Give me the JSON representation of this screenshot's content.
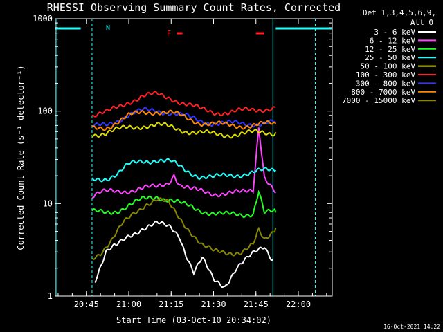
{
  "chart_data": {
    "type": "line",
    "title": "RHESSI Observing Summary Count Rates, Corrected",
    "xlabel": "Start Time (03-Oct-10 20:34:02)",
    "ylabel": "Corrected Count Rate (s⁻¹ detector⁻¹)",
    "yscale": "log",
    "ylim": [
      1,
      1000
    ],
    "xlim": [
      "20:34:02",
      "22:12:00"
    ],
    "x_ticks": [
      "20:45",
      "21:00",
      "21:15",
      "21:30",
      "21:45",
      "22:00"
    ],
    "y_ticks": [
      "1",
      "10",
      "100",
      "1000"
    ],
    "legend_position": "right",
    "legend_header": [
      "Det 1,3,4,5,6,9,",
      "Att 0"
    ],
    "footer_date": "16-Oct-2021 14:22",
    "annotations": {
      "night_marker": "N",
      "flare_marker": "F"
    },
    "series": [
      {
        "name": "3 - 6 keV",
        "color": "#ffffff",
        "x": [
          "20:48",
          "20:52",
          "20:56",
          "21:00",
          "21:05",
          "21:10",
          "21:15",
          "21:18",
          "21:20",
          "21:23",
          "21:26",
          "21:30",
          "21:34",
          "21:38",
          "21:42",
          "21:45",
          "21:48",
          "21:51"
        ],
        "values": [
          1.5,
          3,
          3.5,
          4.5,
          5.5,
          6,
          5.5,
          4.5,
          3,
          1.8,
          2.5,
          1.5,
          1.3,
          2,
          2.5,
          3,
          3.5,
          2.5
        ]
      },
      {
        "name": "6 - 12 keV",
        "color": "#ff44ff",
        "x": [
          "20:47",
          "20:50",
          "20:55",
          "21:00",
          "21:05",
          "21:10",
          "21:14",
          "21:16",
          "21:18",
          "21:22",
          "21:30",
          "21:40",
          "21:44",
          "21:46",
          "21:48",
          "21:52"
        ],
        "values": [
          12,
          13,
          13.5,
          14,
          14.5,
          15,
          17,
          21,
          16,
          14,
          13,
          13,
          14,
          70,
          20,
          13
        ]
      },
      {
        "name": "12 - 25 keV",
        "color": "#22ff22",
        "x": [
          "20:47",
          "20:52",
          "20:56",
          "21:00",
          "21:05",
          "21:10",
          "21:15",
          "21:20",
          "21:25",
          "21:30",
          "21:35",
          "21:40",
          "21:44",
          "21:46",
          "21:48",
          "21:52"
        ],
        "values": [
          8,
          8,
          8.5,
          9.5,
          11,
          12,
          11,
          9.5,
          8.5,
          8,
          7.5,
          7.5,
          8,
          14,
          8,
          8
        ]
      },
      {
        "name": "25 - 50 keV",
        "color": "#22ffff",
        "x": [
          "20:47",
          "20:52",
          "20:56",
          "21:00",
          "21:05",
          "21:10",
          "21:15",
          "21:20",
          "21:25",
          "21:30",
          "21:35",
          "21:40",
          "21:45",
          "21:52"
        ],
        "values": [
          18,
          19,
          21,
          26,
          29,
          30,
          28,
          23,
          20,
          19,
          20,
          21,
          22,
          23
        ]
      },
      {
        "name": "50 - 100 keV",
        "color": "#dddd00",
        "x": [
          "20:47",
          "20:52",
          "20:56",
          "21:00",
          "21:05",
          "21:10",
          "21:15",
          "21:20",
          "21:25",
          "21:30",
          "21:35",
          "21:40",
          "21:45",
          "21:52"
        ],
        "values": [
          57,
          58,
          62,
          67,
          70,
          70,
          67,
          62,
          58,
          56,
          56,
          57,
          58,
          59
        ]
      },
      {
        "name": "100 - 300 keV",
        "color": "#ff2222",
        "x": [
          "20:47",
          "20:52",
          "20:56",
          "21:00",
          "21:05",
          "21:10",
          "21:15",
          "21:20",
          "21:25",
          "21:30",
          "21:35",
          "21:40",
          "21:45",
          "21:52"
        ],
        "values": [
          90,
          95,
          110,
          128,
          145,
          150,
          140,
          120,
          105,
          98,
          97,
          100,
          104,
          110
        ]
      },
      {
        "name": "300 - 800 keV",
        "color": "#3333ff",
        "x": [
          "20:47",
          "20:52",
          "20:56",
          "21:00",
          "21:05",
          "21:10",
          "21:15",
          "21:20",
          "21:25",
          "21:30",
          "21:35",
          "21:40",
          "21:45",
          "21:52"
        ],
        "values": [
          67,
          70,
          80,
          92,
          100,
          102,
          97,
          87,
          79,
          75,
          73,
          73,
          74,
          75
        ]
      },
      {
        "name": "800 - 7000 keV",
        "color": "#ff8800",
        "x": [
          "20:47",
          "20:52",
          "20:56",
          "21:00",
          "21:05",
          "21:10",
          "21:15",
          "21:20",
          "21:25",
          "21:30",
          "21:35",
          "21:40",
          "21:45",
          "21:52"
        ],
        "values": [
          64,
          67,
          77,
          88,
          97,
          100,
          95,
          85,
          76,
          72,
          70,
          70,
          71,
          72
        ]
      },
      {
        "name": "7000 - 15000 keV",
        "color": "#888800",
        "x": [
          "20:47",
          "20:50",
          "20:54",
          "20:58",
          "21:02",
          "21:06",
          "21:10",
          "21:14",
          "21:18",
          "21:22",
          "21:26",
          "21:30",
          "21:35",
          "21:40",
          "21:44",
          "21:46",
          "21:48",
          "21:52"
        ],
        "values": [
          2.6,
          3,
          4,
          6,
          8,
          10,
          11,
          10,
          7,
          5,
          3.5,
          3,
          3,
          3,
          3.5,
          5,
          4,
          5.5
        ]
      }
    ]
  }
}
